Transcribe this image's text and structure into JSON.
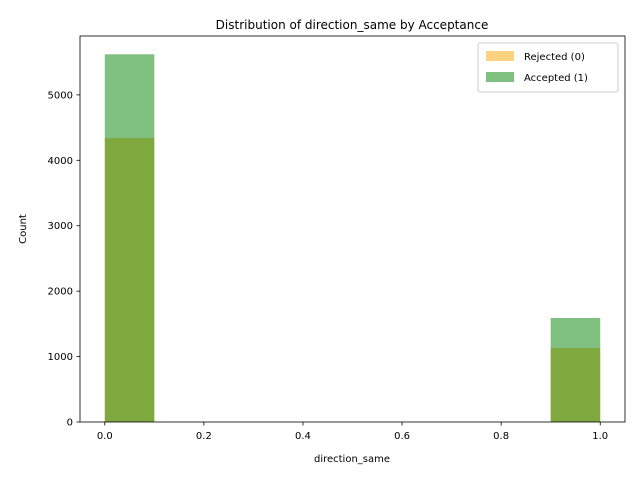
{
  "chart_data": {
    "type": "bar",
    "title": "Distribution of direction_same by Acceptance",
    "xlabel": "direction_same",
    "ylabel": "Count",
    "xlim": [
      -0.05,
      1.05
    ],
    "ylim": [
      0,
      5900
    ],
    "xticks": [
      0.0,
      0.2,
      0.4,
      0.6,
      0.8,
      1.0
    ],
    "xtick_labels": [
      "0.0",
      "0.2",
      "0.4",
      "0.6",
      "0.8",
      "1.0"
    ],
    "yticks": [
      0,
      1000,
      2000,
      3000,
      4000,
      5000
    ],
    "ytick_labels": [
      "0",
      "1000",
      "2000",
      "3000",
      "4000",
      "5000"
    ],
    "bins": [
      [
        0.0,
        0.1
      ],
      [
        0.9,
        1.0
      ]
    ],
    "series": [
      {
        "name": "Rejected (0)",
        "color": "#ffa500",
        "opacity": 0.5,
        "values": [
          4340,
          1130
        ]
      },
      {
        "name": "Accepted (1)",
        "color": "#008000",
        "opacity": 0.5,
        "values": [
          5620,
          1590
        ]
      }
    ],
    "grid": false,
    "legend_position": "top-right"
  }
}
